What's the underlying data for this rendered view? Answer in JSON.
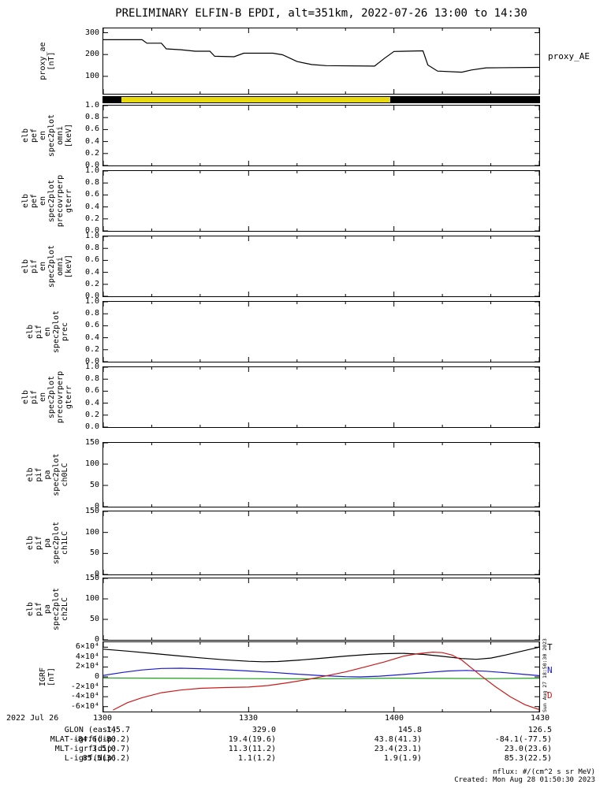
{
  "title": "PRELIMINARY ELFIN-B EPDI, alt=351km, 2022-07-26 13:00 to 14:30",
  "right_labels": {
    "proxy": "proxy_AE",
    "igrf": [
      {
        "text": "T",
        "color": "#000000"
      },
      {
        "text": "N",
        "color": "#1a1acc"
      },
      {
        "text": "D",
        "color": "#cc1a1a"
      }
    ]
  },
  "side_timestamp": "Sun Aug 27 18:50:30 2023",
  "footer": {
    "units": "nflux: #/(cm^2 s sr MeV)",
    "created": "Created: Mon Aug 28 01:50:30 2023"
  },
  "xaxis": {
    "date_label": "2022 Jul 26",
    "minutes_total": 90,
    "ticks": [
      {
        "label": "1300",
        "minutes": 0
      },
      {
        "label": "1330",
        "minutes": 30
      },
      {
        "label": "1400",
        "minutes": 60
      },
      {
        "label": "1430",
        "minutes": 90
      }
    ]
  },
  "info_rows": [
    {
      "label": "GLON (east)",
      "values": [
        "145.7",
        "329.0",
        "145.8",
        "126.5"
      ]
    },
    {
      "label": "MLAT-igrf(dip)",
      "values": [
        "-84.6(-80.2)",
        "19.4(19.6)",
        "43.8(41.3)",
        "-84.1(-77.5)"
      ]
    },
    {
      "label": "MLT-igrf(dip)",
      "values": [
        "3.5(0.7)",
        "11.3(11.2)",
        "23.4(23.1)",
        "23.0(23.6)"
      ]
    },
    {
      "label": "L-igrf(dip)",
      "values": [
        "85.5(36.2)",
        "1.1(1.2)",
        "1.9(1.9)",
        "85.3(22.5)"
      ]
    }
  ],
  "chart_data": [
    {
      "id": "proxy_ae",
      "type": "line",
      "ylabel_lines": [
        "proxy_ae",
        "[nT]"
      ],
      "ylim": [
        20,
        320
      ],
      "yticks": [
        {
          "v": 100,
          "label": "100"
        },
        {
          "v": 200,
          "label": "200"
        },
        {
          "v": 300,
          "label": "300"
        }
      ],
      "series": [
        {
          "name": "proxy_AE",
          "color": "#000000",
          "x": [
            0,
            8,
            9,
            12,
            13,
            16,
            19,
            22,
            23,
            27,
            29,
            35,
            37,
            40,
            43,
            46,
            56,
            58,
            60,
            66,
            67,
            69,
            74,
            76,
            79,
            90
          ],
          "y": [
            268,
            268,
            252,
            252,
            226,
            222,
            215,
            215,
            192,
            190,
            206,
            206,
            199,
            168,
            154,
            149,
            147,
            182,
            214,
            217,
            152,
            124,
            119,
            129,
            139,
            141
          ]
        }
      ]
    },
    {
      "id": "status_bar",
      "type": "bar-strip",
      "segments": [
        {
          "color": "#000000",
          "from": 0.0,
          "to": 0.041
        },
        {
          "color": "#e8d911",
          "from": 0.041,
          "to": 0.658
        },
        {
          "color": "#000000",
          "from": 0.658,
          "to": 1.0
        }
      ]
    },
    {
      "id": "elb_pef_en_omni",
      "type": "line",
      "ylabel_lines": [
        "elb",
        "pef",
        "en",
        "spec2plot",
        "omni",
        "[keV]"
      ],
      "ylim": [
        0,
        1
      ],
      "yticks": [
        {
          "v": 0,
          "label": "0.0"
        },
        {
          "v": 0.2,
          "label": "0.2"
        },
        {
          "v": 0.4,
          "label": "0.4"
        },
        {
          "v": 0.6,
          "label": "0.6"
        },
        {
          "v": 0.8,
          "label": "0.8"
        },
        {
          "v": 1,
          "label": "1.0"
        }
      ],
      "series": []
    },
    {
      "id": "elb_pef_en_precovrperp",
      "type": "line",
      "ylabel_lines": [
        "elb",
        "pef",
        "en",
        "spec2plot",
        "precovrperp",
        "gterr"
      ],
      "ylim": [
        0,
        1
      ],
      "yticks": [
        {
          "v": 0,
          "label": "0.0"
        },
        {
          "v": 0.2,
          "label": "0.2"
        },
        {
          "v": 0.4,
          "label": "0.4"
        },
        {
          "v": 0.6,
          "label": "0.6"
        },
        {
          "v": 0.8,
          "label": "0.8"
        },
        {
          "v": 1,
          "label": "1.0"
        }
      ],
      "series": []
    },
    {
      "id": "elb_pif_en_omni",
      "type": "line",
      "ylabel_lines": [
        "elb",
        "pif",
        "en",
        "spec2plot",
        "omni",
        "[keV]"
      ],
      "ylim": [
        0,
        1
      ],
      "yticks": [
        {
          "v": 0,
          "label": "0.0"
        },
        {
          "v": 0.2,
          "label": "0.2"
        },
        {
          "v": 0.4,
          "label": "0.4"
        },
        {
          "v": 0.6,
          "label": "0.6"
        },
        {
          "v": 0.8,
          "label": "0.8"
        },
        {
          "v": 1,
          "label": "1.0"
        }
      ],
      "series": []
    },
    {
      "id": "elb_pif_en_prec",
      "type": "line",
      "ylabel_lines": [
        "elb",
        "pif",
        "en",
        "spec2plot",
        "prec"
      ],
      "ylim": [
        0,
        1
      ],
      "yticks": [
        {
          "v": 0,
          "label": "0.0"
        },
        {
          "v": 0.2,
          "label": "0.2"
        },
        {
          "v": 0.4,
          "label": "0.4"
        },
        {
          "v": 0.6,
          "label": "0.6"
        },
        {
          "v": 0.8,
          "label": "0.8"
        },
        {
          "v": 1,
          "label": "1.0"
        }
      ],
      "series": []
    },
    {
      "id": "elb_pif_en_precovrperp",
      "type": "line",
      "ylabel_lines": [
        "elb",
        "pif",
        "en",
        "spec2plot",
        "precovrperp",
        "gterr"
      ],
      "ylim": [
        0,
        1
      ],
      "yticks": [
        {
          "v": 0,
          "label": "0.0"
        },
        {
          "v": 0.2,
          "label": "0.2"
        },
        {
          "v": 0.4,
          "label": "0.4"
        },
        {
          "v": 0.6,
          "label": "0.6"
        },
        {
          "v": 0.8,
          "label": "0.8"
        },
        {
          "v": 1,
          "label": "1.0"
        }
      ],
      "series": []
    },
    {
      "id": "elb_pif_pa_ch0lc",
      "type": "line",
      "ylabel_lines": [
        "elb",
        "pif",
        "pa",
        "spec2plot",
        "ch0LC"
      ],
      "ylim": [
        0,
        150
      ],
      "yticks": [
        {
          "v": 0,
          "label": "0"
        },
        {
          "v": 50,
          "label": "50"
        },
        {
          "v": 100,
          "label": "100"
        },
        {
          "v": 150,
          "label": "150"
        }
      ],
      "series": []
    },
    {
      "id": "elb_pif_pa_ch1lc",
      "type": "line",
      "ylabel_lines": [
        "elb",
        "pif",
        "pa",
        "spec2plot",
        "ch1LC"
      ],
      "ylim": [
        0,
        150
      ],
      "yticks": [
        {
          "v": 0,
          "label": "0"
        },
        {
          "v": 50,
          "label": "50"
        },
        {
          "v": 100,
          "label": "100"
        },
        {
          "v": 150,
          "label": "150"
        }
      ],
      "series": []
    },
    {
      "id": "elb_pif_pa_ch2lc",
      "type": "line",
      "ylabel_lines": [
        "elb",
        "pif",
        "pa",
        "spec2plot",
        "ch2LC"
      ],
      "ylim": [
        0,
        150
      ],
      "yticks": [
        {
          "v": 0,
          "label": "0"
        },
        {
          "v": 50,
          "label": "50"
        },
        {
          "v": 100,
          "label": "100"
        },
        {
          "v": 150,
          "label": "150"
        }
      ],
      "series": []
    },
    {
      "id": "igrf",
      "type": "line",
      "ylabel_lines": [
        "IGRF",
        "[nT]"
      ],
      "ylim": [
        -70000,
        70000
      ],
      "yticks": [
        {
          "v": -60000,
          "label": "-6×10⁴"
        },
        {
          "v": -40000,
          "label": "-4×10⁴"
        },
        {
          "v": -20000,
          "label": "-2×10⁴"
        },
        {
          "v": 0,
          "label": "0"
        },
        {
          "v": 20000,
          "label": "2×10⁴"
        },
        {
          "v": 40000,
          "label": "4×10⁴"
        },
        {
          "v": 60000,
          "label": "6×10⁴"
        }
      ],
      "series": [
        {
          "name": "T",
          "color": "#000000",
          "x": [
            0,
            5,
            10,
            15,
            20,
            25,
            30,
            33,
            36,
            40,
            45,
            50,
            55,
            58,
            62,
            66,
            70,
            74,
            77,
            80,
            83,
            86,
            90
          ],
          "y": [
            56000,
            52000,
            47500,
            43000,
            38500,
            34500,
            31500,
            30500,
            31000,
            33500,
            37500,
            42000,
            45500,
            47000,
            47500,
            45500,
            41500,
            37000,
            35500,
            38000,
            44000,
            51000,
            60000
          ]
        },
        {
          "name": "N",
          "color": "#1a1acc",
          "x": [
            0,
            4,
            8,
            12,
            16,
            20,
            25,
            30,
            35,
            40,
            45,
            50,
            53,
            57,
            62,
            67,
            71,
            75,
            79,
            83,
            87,
            90
          ],
          "y": [
            3000,
            9000,
            14000,
            17000,
            17500,
            16500,
            14500,
            12000,
            9000,
            5500,
            2500,
            500,
            0,
            1500,
            5000,
            9000,
            12000,
            13000,
            11500,
            8500,
            5000,
            2500
          ]
        },
        {
          "name": "E",
          "color": "#1e9e1e",
          "x": [
            0,
            10,
            20,
            30,
            40,
            50,
            60,
            70,
            80,
            90
          ],
          "y": [
            -2000,
            -2500,
            -3000,
            -3500,
            -4000,
            -3500,
            -2500,
            -3000,
            -3500,
            -2500
          ]
        },
        {
          "name": "D",
          "color": "#cc1a1a",
          "x": [
            2,
            5,
            8,
            12,
            16,
            20,
            25,
            30,
            34,
            38,
            42,
            46,
            50,
            54,
            58,
            62,
            65,
            68,
            70,
            72,
            74,
            76,
            78,
            81,
            84,
            87,
            90
          ],
          "y": [
            -67000,
            -52000,
            -42000,
            -32000,
            -26500,
            -23000,
            -21500,
            -20500,
            -17500,
            -12000,
            -5500,
            2000,
            10000,
            20000,
            30000,
            42000,
            47000,
            50000,
            49000,
            44000,
            34000,
            18000,
            2000,
            -20000,
            -40000,
            -56000,
            -66000
          ]
        }
      ]
    }
  ]
}
